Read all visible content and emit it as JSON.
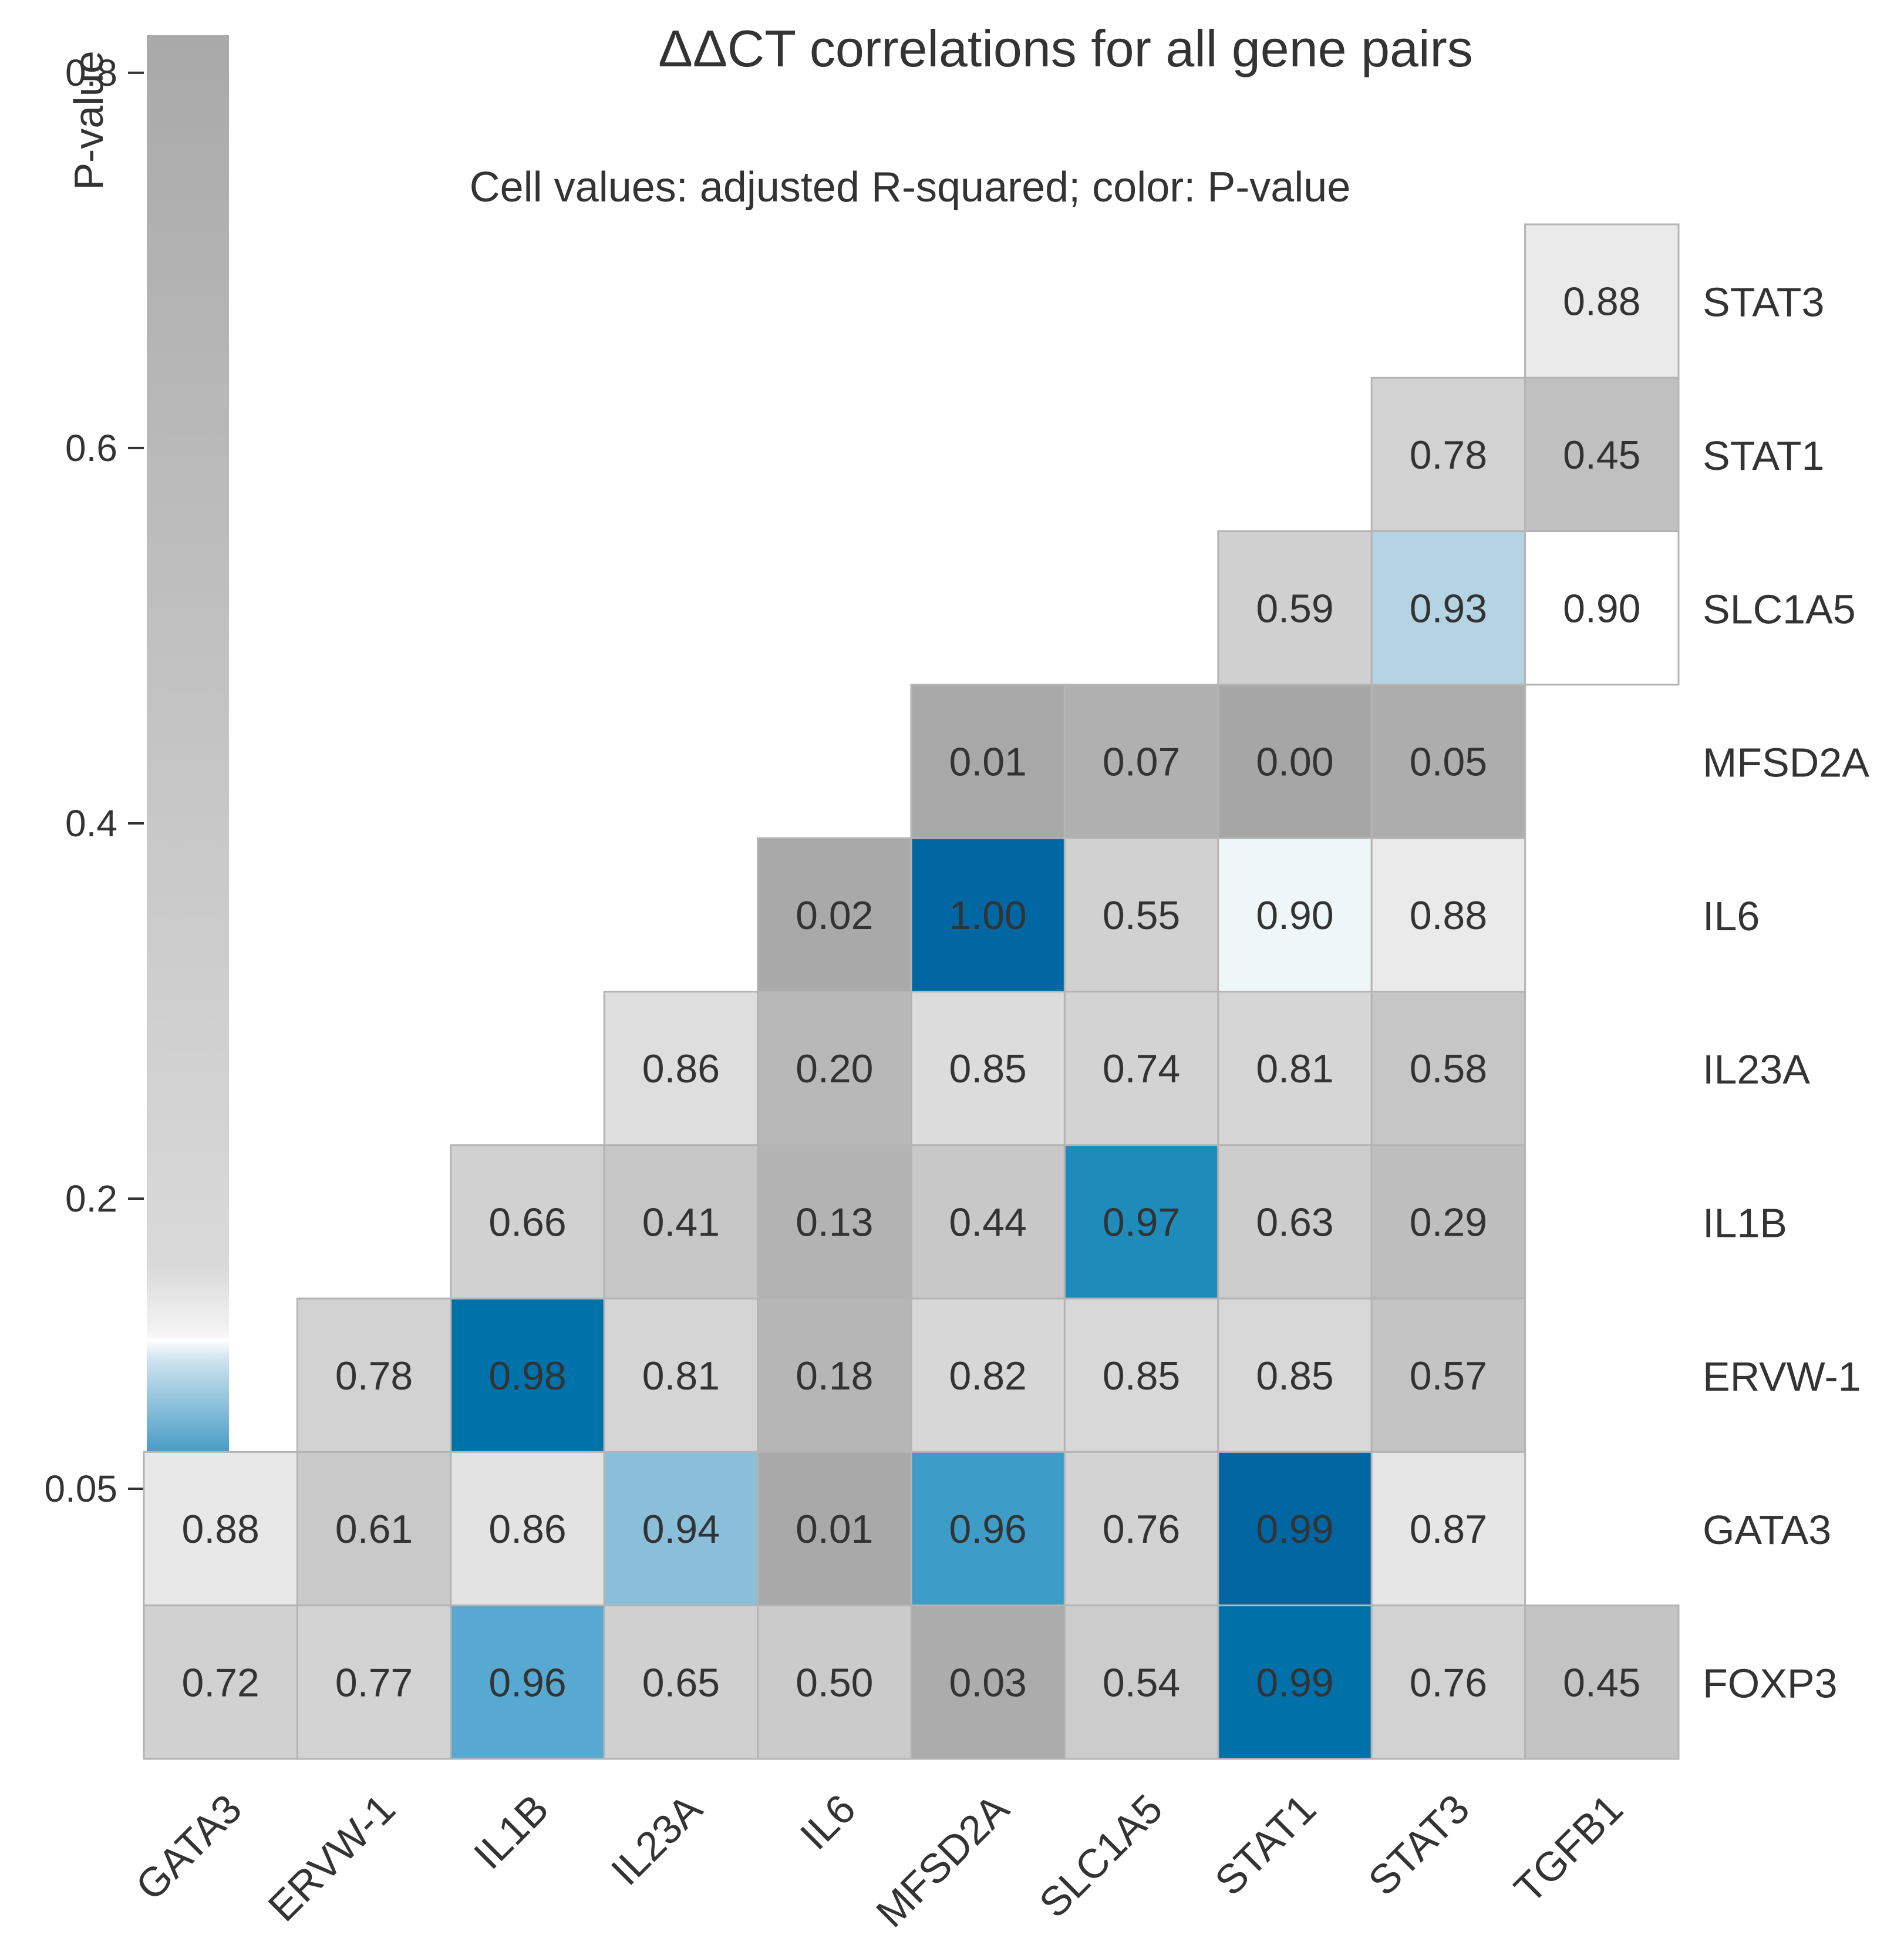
{
  "chart_data": {
    "type": "heatmap",
    "title": "ΔΔCT correlations for all gene pairs",
    "subtitle": "Cell values: adjusted R-squared; color: P-value",
    "legend": {
      "title": "P-value",
      "ticks": [
        "0.8",
        "0.6",
        "0.4",
        "0.2",
        "0.05"
      ],
      "tick_values": [
        0.8,
        0.6,
        0.4,
        0.2,
        0.05
      ],
      "range": [
        0,
        0.85
      ]
    },
    "columns": [
      "GATA3",
      "ERVW-1",
      "IL1B",
      "IL23A",
      "IL6",
      "MFSD2A",
      "SLC1A5",
      "STAT1",
      "STAT3",
      "TGFB1"
    ],
    "rows": [
      "STAT3",
      "STAT1",
      "SLC1A5",
      "MFSD2A",
      "IL6",
      "IL23A",
      "IL1B",
      "ERVW-1",
      "GATA3",
      "FOXP3"
    ],
    "values": [
      [
        null,
        null,
        null,
        null,
        null,
        null,
        null,
        null,
        null,
        "0.88"
      ],
      [
        null,
        null,
        null,
        null,
        null,
        null,
        null,
        null,
        "0.78",
        "0.45"
      ],
      [
        null,
        null,
        null,
        null,
        null,
        null,
        null,
        "0.59",
        "0.93",
        "0.90"
      ],
      [
        null,
        null,
        null,
        null,
        null,
        "0.01",
        "0.07",
        "0.00",
        "0.05",
        null
      ],
      [
        null,
        null,
        null,
        null,
        "0.02",
        "1.00",
        "0.55",
        "0.90",
        "0.88",
        null
      ],
      [
        null,
        null,
        null,
        "0.86",
        "0.20",
        "0.85",
        "0.74",
        "0.81",
        "0.58",
        null
      ],
      [
        null,
        null,
        "0.66",
        "0.41",
        "0.13",
        "0.44",
        "0.97",
        "0.63",
        "0.29",
        null
      ],
      [
        null,
        "0.78",
        "0.98",
        "0.81",
        "0.18",
        "0.82",
        "0.85",
        "0.85",
        "0.57",
        null
      ],
      [
        "0.88",
        "0.61",
        "0.86",
        "0.94",
        "0.01",
        "0.96",
        "0.76",
        "0.99",
        "0.87",
        null
      ],
      [
        "0.72",
        "0.77",
        "0.96",
        "0.65",
        "0.50",
        "0.03",
        "0.54",
        "0.99",
        "0.76",
        "0.45"
      ]
    ],
    "cell_colors": [
      [
        null,
        null,
        null,
        null,
        null,
        null,
        null,
        null,
        null,
        "#eaeaea"
      ],
      [
        null,
        null,
        null,
        null,
        null,
        null,
        null,
        null,
        "#d2d2d2",
        "#c0c0c0"
      ],
      [
        null,
        null,
        null,
        null,
        null,
        null,
        null,
        "#d0d0d0",
        "#b4d4e4",
        "#ffffff"
      ],
      [
        null,
        null,
        null,
        null,
        null,
        "#a8a8a8",
        "#b0b0b0",
        "#a6a6a6",
        "#adadad",
        null
      ],
      [
        null,
        null,
        null,
        null,
        "#a9a9a9",
        "#0067a3",
        "#d1d1d1",
        "#eff6f9",
        "#eaeaea",
        null
      ],
      [
        null,
        null,
        null,
        "#dedede",
        "#b8b8b8",
        "#dcdcdc",
        "#d3d3d3",
        "#d6d6d6",
        "#c6c6c6",
        null
      ],
      [
        null,
        null,
        "#d1d1d1",
        "#c6c6c6",
        "#b3b3b3",
        "#c8c8c8",
        "#1e8bbb",
        "#cdcdcd",
        "#bebebe",
        null
      ],
      [
        null,
        "#d2d2d2",
        "#0072aa",
        "#d5d5d5",
        "#b6b6b6",
        "#d7d7d7",
        "#d8d8d8",
        "#d8d8d8",
        "#c4c4c4",
        null
      ],
      [
        "#e8e8e8",
        "#c9c9c9",
        "#e3e3e3",
        "#8abfdc",
        "#a9a9a9",
        "#3d9cc8",
        "#d3d3d3",
        "#0066a1",
        "#e6e6e6",
        null
      ],
      [
        "#d1d1d1",
        "#d3d3d3",
        "#57a9d2",
        "#d0d0d0",
        "#cbcbcb",
        "#acacac",
        "#cccccc",
        "#0070a8",
        "#d2d2d2",
        "#c3c3c3"
      ]
    ]
  }
}
